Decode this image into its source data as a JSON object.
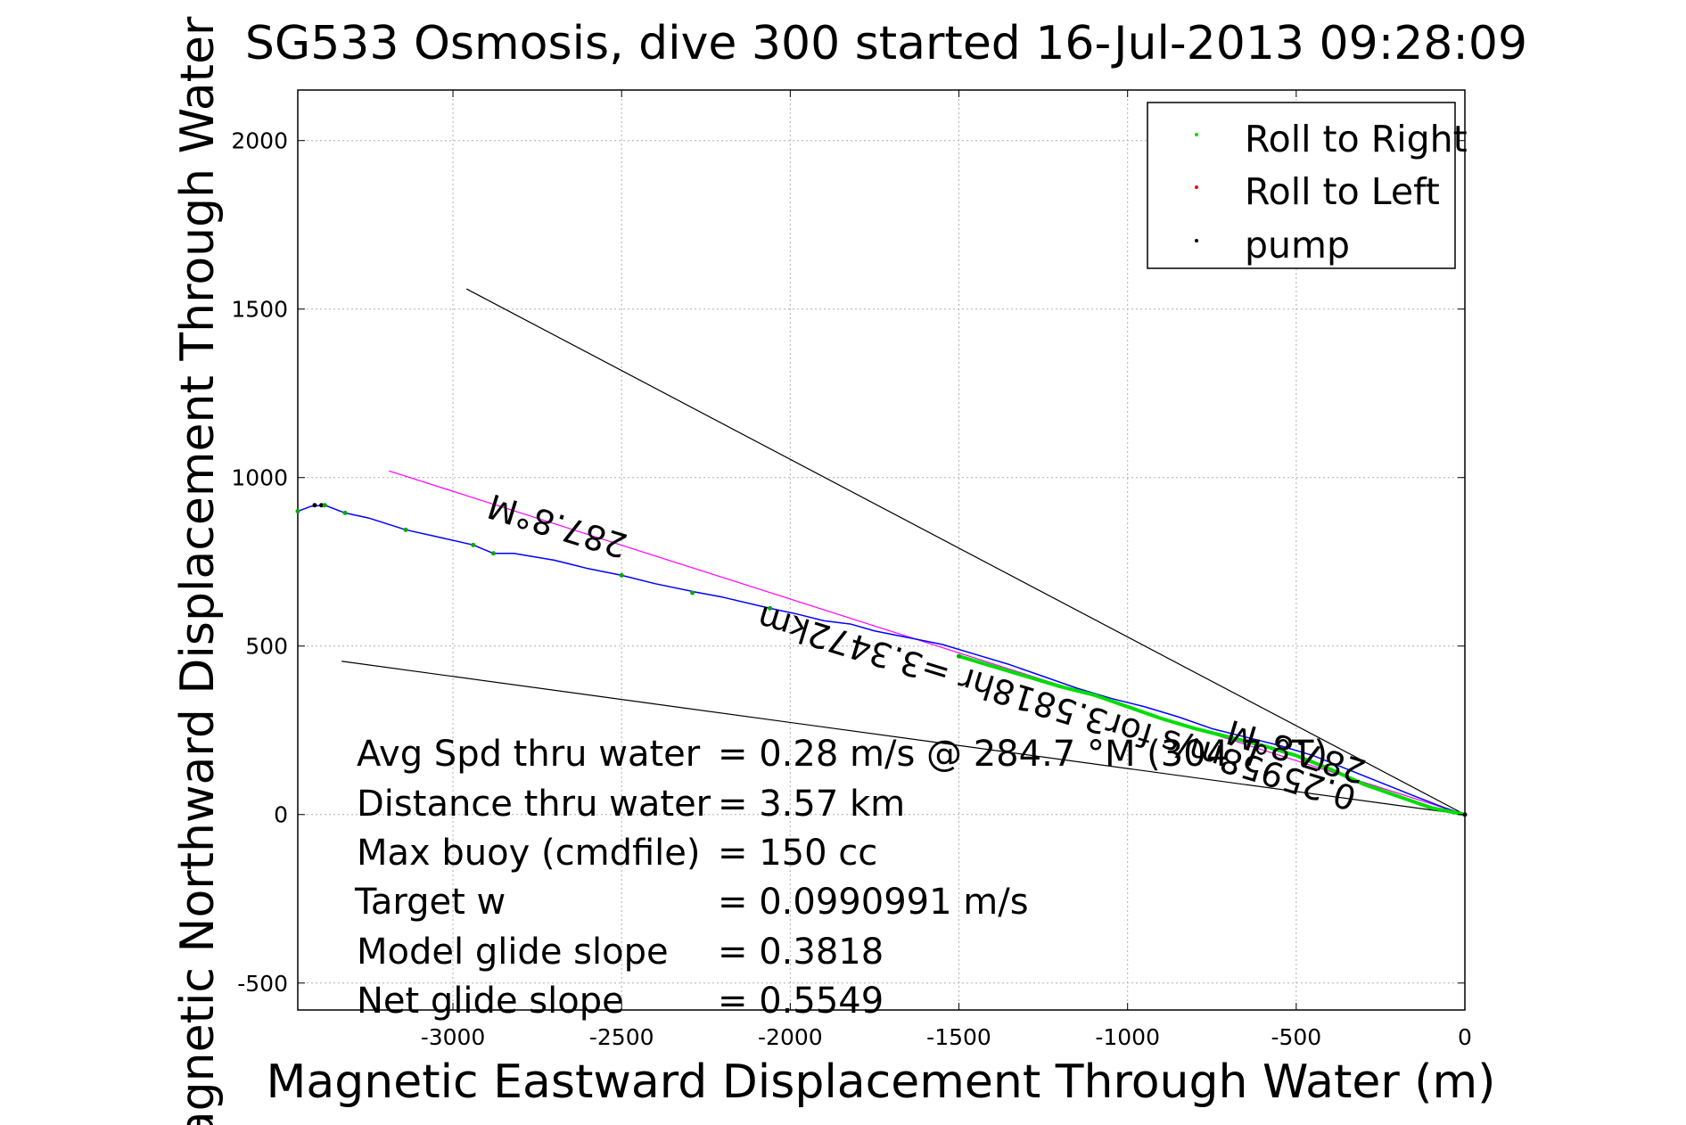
{
  "chart_data": {
    "type": "line",
    "title": "SG533 Osmosis, dive 300 started 16-Jul-2013 09:28:09",
    "xlabel": "Magnetic Eastward Displacement Through Water (m)",
    "ylabel": "Magnetic Northward Displacement Through Water (m)",
    "xlim": [
      -3460,
      0
    ],
    "ylim": [
      -580,
      2150
    ],
    "xticks": [
      -3000,
      -2500,
      -2000,
      -1500,
      -1000,
      -500,
      0
    ],
    "yticks": [
      -500,
      0,
      500,
      1000,
      1500,
      2000
    ],
    "xtick_labels": [
      "-3000",
      "-2500",
      "-2000",
      "-1500",
      "-1000",
      "-500",
      "0"
    ],
    "ytick_labels": [
      "-500",
      "0",
      "500",
      "1000",
      "1500",
      "2000"
    ],
    "grid": true,
    "legend_position": "top-right",
    "legend": [
      {
        "label": "Roll to Right",
        "color": "#00dd00"
      },
      {
        "label": "Roll to Left",
        "color": "#ff0000"
      },
      {
        "label": "pump",
        "color": "#000000"
      }
    ],
    "series": [
      {
        "name": "Roll to Right",
        "color": "#00dd00",
        "x": [
          -1500,
          -1400,
          -1300,
          -1200,
          -1100,
          -1000,
          -900,
          -800,
          -700,
          -600,
          -500,
          -400,
          -300,
          -200,
          -100,
          0
        ],
        "y": [
          470,
          440,
          410,
          380,
          355,
          320,
          285,
          255,
          230,
          205,
          175,
          135,
          90,
          55,
          20,
          0
        ]
      },
      {
        "color": "#0000ff",
        "x": [
          -3460,
          -3420,
          -3380,
          -3320,
          -3250,
          -3140,
          -3050,
          -2940,
          -2880,
          -2820,
          -2700,
          -2600,
          -2500,
          -2400,
          -2280,
          -2200,
          -2060,
          -1980,
          -1900,
          -1820,
          -1750,
          -1650,
          -1550,
          -1450,
          -1350,
          -1250,
          -1150,
          -1050,
          -950,
          -850,
          -750,
          -650,
          -550,
          -450,
          -350,
          -250,
          -150,
          -60,
          0
        ],
        "y": [
          900,
          915,
          918,
          895,
          880,
          845,
          825,
          800,
          775,
          775,
          755,
          730,
          710,
          685,
          660,
          645,
          612,
          595,
          575,
          565,
          545,
          525,
          505,
          475,
          445,
          410,
          375,
          345,
          320,
          290,
          255,
          230,
          205,
          175,
          135,
          95,
          55,
          20,
          0
        ]
      },
      {
        "name": "pump",
        "color": "#000000",
        "x": [
          -3410,
          -3390,
          0
        ],
        "y": [
          918,
          918,
          0
        ]
      }
    ],
    "green_markers": {
      "x": [
        -3460,
        -3380,
        -3320,
        -3140,
        -2940,
        -2880,
        -2500,
        -2290,
        -2060,
        -1500
      ],
      "y": [
        900,
        918,
        895,
        845,
        800,
        775,
        710,
        658,
        612,
        470
      ]
    },
    "reference_lines": [
      {
        "color": "#ff00ff",
        "x": [
          -3190,
          0
        ],
        "y": [
          1020,
          0
        ]
      },
      {
        "color": "#000000",
        "x": [
          -2960,
          0
        ],
        "y": [
          1560,
          0
        ]
      },
      {
        "color": "#000000",
        "x": [
          -3330,
          0
        ],
        "y": [
          455,
          0
        ]
      }
    ],
    "annotations": [
      {
        "text": "287.8°M",
        "x": -2680,
        "y": 890,
        "angle": 197
      },
      {
        "text": "287.8°M",
        "x": -490,
        "y": 220,
        "angle": 197
      },
      {
        "text": "0.25958m/s for3.5818hr =3.3472km",
        "x": -1200,
        "y": 350,
        "angle": 197
      }
    ],
    "stats": [
      {
        "label": "Avg Spd thru water",
        "value": "=  0.28 m/s @ 284.7 °M (304.7 °T)"
      },
      {
        "label": "Distance thru water",
        "value": "=  3.57 km"
      },
      {
        "label": "Max buoy (cmdfile)",
        "value": "= 150 cc"
      },
      {
        "label": "Target w",
        "value": "= 0.0990991 m/s"
      },
      {
        "label": "Model glide slope",
        "value": "= 0.3818"
      },
      {
        "label": "Net glide slope",
        "value": "= 0.5549"
      }
    ]
  }
}
